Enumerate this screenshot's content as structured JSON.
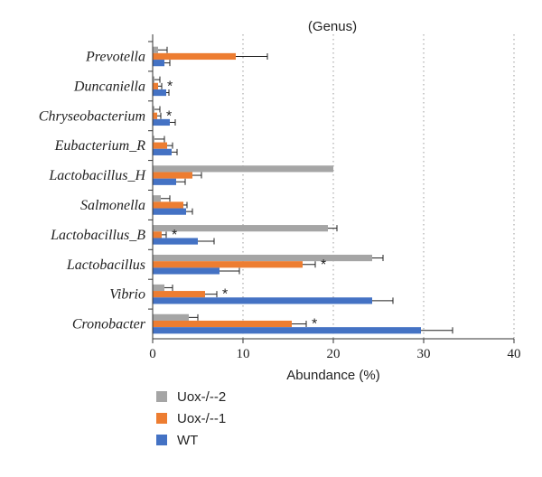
{
  "chart_data": {
    "type": "bar",
    "orientation": "horizontal",
    "title": "(Genus)",
    "xlabel": "Abundance (%)",
    "ylabel": "",
    "xlim": [
      0,
      40
    ],
    "xticks": [
      "0",
      "10",
      "20",
      "30",
      "40"
    ],
    "grid": "vertical dotted",
    "legend_position": "bottom-left",
    "categories": [
      "Prevotella",
      "Duncaniella",
      "Chryseobacterium",
      "Eubacterium_R",
      "Lactobacillus_H",
      "Salmonella",
      "Lactobacillus_B",
      "Lactobacillus",
      "Vibrio",
      "Cronobacter"
    ],
    "series": [
      {
        "name": "Uox-/--2",
        "color": "#a5a5a5",
        "values": [
          0.6,
          0.2,
          0.2,
          0.2,
          20.0,
          0.9,
          19.4,
          24.3,
          1.3,
          4.0
        ],
        "errors": [
          1.0,
          0.6,
          0.6,
          1.1,
          0.0,
          1.0,
          1.0,
          1.2,
          0.9,
          1.0
        ]
      },
      {
        "name": "Uox-/--1",
        "color": "#ed7d31",
        "values": [
          9.2,
          0.6,
          0.5,
          1.6,
          4.4,
          3.4,
          1.0,
          16.6,
          5.8,
          15.4
        ],
        "errors": [
          3.5,
          0.4,
          0.4,
          0.6,
          1.0,
          0.4,
          0.5,
          1.4,
          1.3,
          1.6
        ]
      },
      {
        "name": "WT",
        "color": "#4472c4",
        "values": [
          1.3,
          1.5,
          1.9,
          2.1,
          2.6,
          3.7,
          5.0,
          7.4,
          24.3,
          29.7
        ],
        "errors": [
          0.6,
          0.3,
          0.6,
          0.6,
          1.0,
          0.7,
          1.8,
          2.2,
          2.3,
          3.5
        ]
      }
    ],
    "significance": [
      {
        "category": "Duncaniella",
        "mark": "*"
      },
      {
        "category": "Chryseobacterium",
        "mark": "*"
      },
      {
        "category": "Lactobacillus_B",
        "mark": "*"
      },
      {
        "category": "Lactobacillus",
        "mark": "*"
      },
      {
        "category": "Vibrio",
        "mark": "*"
      },
      {
        "category": "Cronobacter",
        "mark": "*"
      }
    ]
  }
}
